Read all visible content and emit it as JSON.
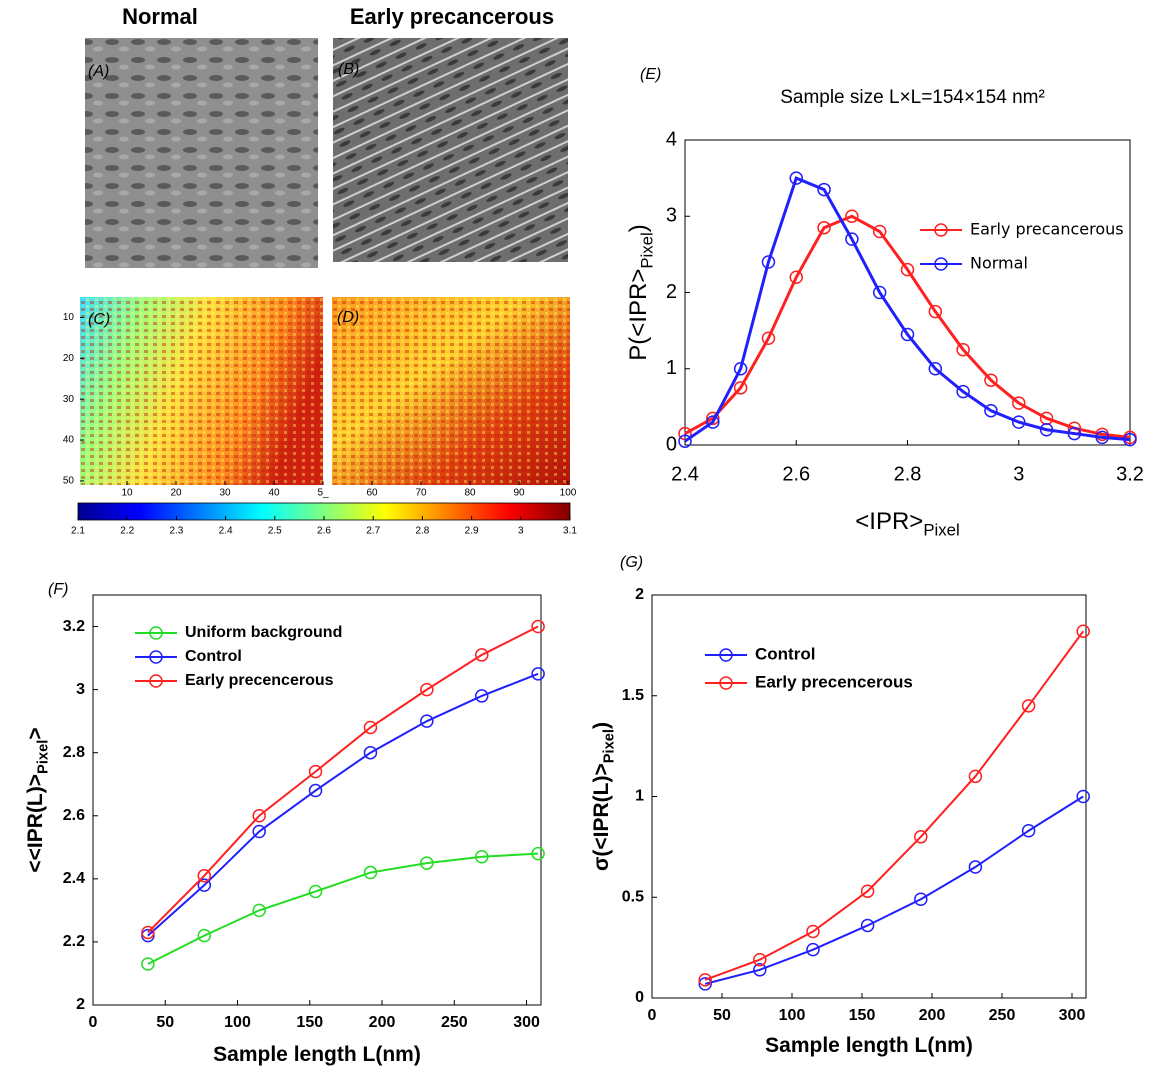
{
  "chart_data": [
    {
      "type": "heatmap",
      "column_titles": [
        "Normal",
        "Early precancerous"
      ],
      "title_colors": [
        "#1a1aff",
        "#ff1a1a"
      ],
      "panels": [
        "(A)",
        "(B)",
        "(C)",
        "(D)"
      ],
      "xlim": [
        0,
        100
      ],
      "xticks": [
        10,
        20,
        30,
        40,
        {
          "value": 50,
          "label": "5_"
        },
        60,
        70,
        80,
        90,
        100
      ],
      "ylim": [
        5,
        51
      ],
      "yticks": [
        10,
        20,
        30,
        40,
        50
      ],
      "clim": [
        2.1,
        3.1
      ],
      "cticks": [
        2.1,
        2.2,
        2.3,
        2.4,
        2.5,
        2.6,
        2.7,
        2.8,
        2.9,
        3,
        3.1
      ]
    },
    {
      "type": "line",
      "panel": "(E)",
      "title": "Sample size L×L=154×154 nm²",
      "xlabel": {
        "text": "<IPR>",
        "sub": "Pixel"
      },
      "ylabel": {
        "text": "P(<IPR>",
        "sub": "Pixel",
        "tail": ")"
      },
      "x": [
        2.4,
        2.45,
        2.5,
        2.55,
        2.6,
        2.65,
        2.7,
        2.75,
        2.8,
        2.85,
        2.9,
        2.95,
        3.0,
        3.05,
        3.1,
        3.15,
        3.2
      ],
      "series": [
        {
          "name": "Early precancerous",
          "color": "#ff2020",
          "values": [
            0.15,
            0.35,
            0.75,
            1.4,
            2.2,
            2.85,
            3.0,
            2.8,
            2.3,
            1.75,
            1.25,
            0.85,
            0.55,
            0.35,
            0.22,
            0.14,
            0.1
          ]
        },
        {
          "name": "Normal",
          "color": "#2020ff",
          "values": [
            0.05,
            0.3,
            1.0,
            2.4,
            3.5,
            3.35,
            2.7,
            2.0,
            1.45,
            1.0,
            0.7,
            0.45,
            0.3,
            0.2,
            0.15,
            0.1,
            0.07
          ]
        }
      ],
      "xlim": [
        2.4,
        3.2
      ],
      "xticks": [
        2.4,
        2.6,
        2.8,
        3,
        3.2
      ],
      "ylim": [
        0,
        4
      ],
      "yticks": [
        0,
        1,
        2,
        3,
        4
      ],
      "legend": "right"
    },
    {
      "type": "line",
      "panel": "(F)",
      "xlabel": {
        "text": "Sample length L(nm)"
      },
      "ylabel": {
        "text": "<<IPR(L)>",
        "sub": "Pixel",
        "tail": ">"
      },
      "x": [
        38,
        77,
        115,
        154,
        192,
        231,
        269,
        308
      ],
      "series": [
        {
          "name": "Uniform background",
          "color": "#22dd22",
          "values": [
            2.13,
            2.22,
            2.3,
            2.36,
            2.42,
            2.45,
            2.47,
            2.48
          ]
        },
        {
          "name": "Control",
          "color": "#2020ff",
          "values": [
            2.22,
            2.38,
            2.55,
            2.68,
            2.8,
            2.9,
            2.98,
            3.05
          ]
        },
        {
          "name": "Early precencerous",
          "color": "#ff2020",
          "values": [
            2.23,
            2.41,
            2.6,
            2.74,
            2.88,
            3.0,
            3.11,
            3.2
          ]
        }
      ],
      "xlim": [
        0,
        310
      ],
      "xticks": [
        0,
        50,
        100,
        150,
        200,
        250,
        300
      ],
      "ylim": [
        2,
        3.3
      ],
      "yticks": [
        2,
        2.2,
        2.4,
        2.6,
        2.8,
        3,
        3.2
      ],
      "legend": "upper left"
    },
    {
      "type": "line",
      "panel": "(G)",
      "xlabel": {
        "text": "Sample length L(nm)"
      },
      "ylabel": {
        "text": "σ(<IPR(L)>",
        "sub": "Pixel",
        "tail": ")"
      },
      "x": [
        38,
        77,
        115,
        154,
        192,
        231,
        269,
        308
      ],
      "series": [
        {
          "name": "Control",
          "color": "#2020ff",
          "values": [
            0.07,
            0.14,
            0.24,
            0.36,
            0.49,
            0.65,
            0.83,
            1.0
          ]
        },
        {
          "name": "Early precencerous",
          "color": "#ff2020",
          "values": [
            0.09,
            0.19,
            0.33,
            0.53,
            0.8,
            1.1,
            1.45,
            1.82
          ]
        }
      ],
      "xlim": [
        0,
        310
      ],
      "xticks": [
        0,
        50,
        100,
        150,
        200,
        250,
        300
      ],
      "ylim": [
        0,
        2
      ],
      "yticks": [
        0,
        0.5,
        1,
        1.5,
        2
      ],
      "legend": "upper left"
    }
  ]
}
